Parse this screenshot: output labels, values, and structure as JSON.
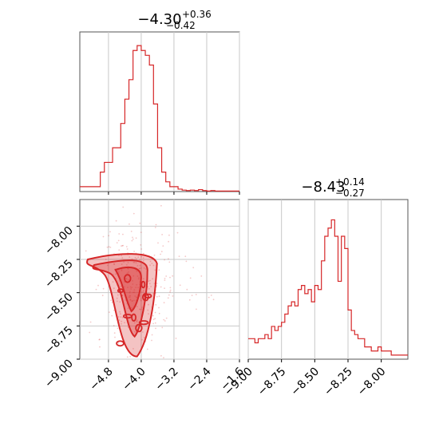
{
  "chart_data": [
    {
      "type": "histogram",
      "panel": "top-left",
      "title_main": "−4.30",
      "title_sup": "+0.36",
      "title_sub": "−0.42",
      "xlim": [
        -5.5,
        -1.6
      ],
      "xticks": [
        -4.8,
        -4.0,
        -3.2,
        -2.4,
        -1.6
      ],
      "grid": true,
      "color": "#d62728",
      "bin_width": 0.1,
      "x_start": -5.5,
      "counts": [
        1,
        1,
        1,
        1,
        1,
        4,
        6,
        6,
        9,
        9,
        14,
        19,
        23,
        29,
        30,
        29,
        28,
        26,
        18,
        9,
        4,
        2,
        1,
        1,
        0.5,
        0.3,
        0.2,
        0.3,
        0.2,
        0.4,
        0.2,
        0.1,
        0.2,
        0.1,
        0.1,
        0.1,
        0.1,
        0.1,
        0.1
      ]
    },
    {
      "type": "histogram",
      "panel": "bottom-right",
      "title_main": "−8.43",
      "title_sup": "+0.14",
      "title_sub": "−0.27",
      "xlim": [
        -9.0,
        -7.8
      ],
      "xticks": [
        "−9.00",
        "−8.75",
        "−8.50",
        "−8.25",
        "−8.00"
      ],
      "xtick_values": [
        -9.0,
        -8.75,
        -8.5,
        -8.25,
        -8.0
      ],
      "grid": true,
      "color": "#d62728",
      "bin_width": 0.025,
      "x_start": -9.0,
      "counts": [
        5,
        5,
        4,
        5,
        5,
        6,
        5,
        8,
        7,
        8,
        9,
        11,
        13,
        14,
        13,
        17,
        18,
        16,
        17,
        14,
        18,
        17,
        24,
        30,
        32,
        34,
        30,
        19,
        30,
        27,
        12,
        7,
        6,
        5,
        5,
        3,
        3,
        2,
        2,
        3,
        2,
        2,
        2,
        1,
        1,
        1,
        1,
        1
      ]
    },
    {
      "type": "scatter-contour",
      "panel": "bottom-left",
      "x_label_ticks": [
        "−4.8",
        "−4.0",
        "−3.2",
        "−2.4",
        "−1.6"
      ],
      "x_tick_values": [
        -4.8,
        -4.0,
        -3.2,
        -2.4,
        -1.6
      ],
      "y_label_ticks": [
        "−8.00",
        "−8.25",
        "−8.50",
        "−8.75",
        "−9.00"
      ],
      "y_tick_values": [
        -8.0,
        -8.25,
        -8.5,
        -8.75,
        -9.0
      ],
      "xlim": [
        -5.5,
        -1.6
      ],
      "ylim": [
        -9.0,
        -7.8
      ],
      "grid": true,
      "color": "#d62728",
      "density_center_x": -4.2,
      "density_center_y": -8.43
    }
  ]
}
